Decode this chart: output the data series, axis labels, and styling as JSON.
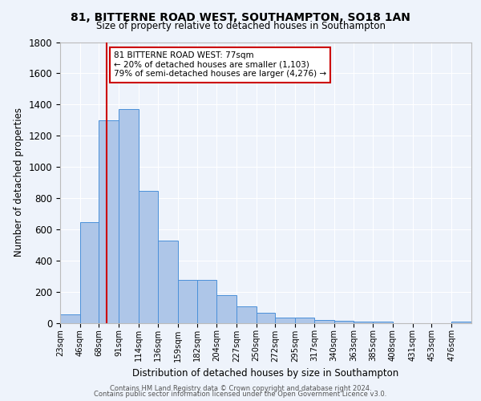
{
  "title_line1": "81, BITTERNE ROAD WEST, SOUTHAMPTON, SO18 1AN",
  "title_line2": "Size of property relative to detached houses in Southampton",
  "xlabel": "Distribution of detached houses by size in Southampton",
  "ylabel": "Number of detached properties",
  "footer_line1": "Contains HM Land Registry data © Crown copyright and database right 2024.",
  "footer_line2": "Contains public sector information licensed under the Open Government Licence v3.0.",
  "annotation_line1": "81 BITTERNE ROAD WEST: 77sqm",
  "annotation_line2": "← 20% of detached houses are smaller (1,103)",
  "annotation_line3": "79% of semi-detached houses are larger (4,276) →",
  "property_size": 77,
  "bar_categories": [
    "23sqm",
    "46sqm",
    "68sqm",
    "91sqm",
    "114sqm",
    "136sqm",
    "159sqm",
    "182sqm",
    "204sqm",
    "227sqm",
    "250sqm",
    "272sqm",
    "295sqm",
    "317sqm",
    "340sqm",
    "363sqm",
    "385sqm",
    "408sqm",
    "431sqm",
    "453sqm",
    "476sqm"
  ],
  "bar_left_edges": [
    23,
    46,
    68,
    91,
    114,
    136,
    159,
    182,
    204,
    227,
    250,
    272,
    295,
    317,
    340,
    363,
    385,
    408,
    431,
    453,
    476
  ],
  "bar_widths": [
    23,
    22,
    23,
    23,
    22,
    23,
    23,
    22,
    23,
    23,
    22,
    23,
    22,
    23,
    23,
    22,
    23,
    23,
    22,
    23,
    23
  ],
  "bar_values": [
    55,
    645,
    1300,
    1370,
    845,
    525,
    275,
    275,
    175,
    105,
    65,
    35,
    35,
    20,
    12,
    10,
    10,
    0,
    0,
    0,
    10
  ],
  "bar_color": "#aec6e8",
  "bar_edge_color": "#4a90d9",
  "vline_x": 77,
  "vline_color": "#cc0000",
  "ylim": [
    0,
    1800
  ],
  "yticks": [
    0,
    200,
    400,
    600,
    800,
    1000,
    1200,
    1400,
    1600,
    1800
  ],
  "bg_color": "#eef3fb",
  "plot_bg_color": "#eef3fb",
  "grid_color": "#ffffff",
  "annotation_box_edge_color": "#cc0000",
  "annotation_box_face_color": "#ffffff"
}
